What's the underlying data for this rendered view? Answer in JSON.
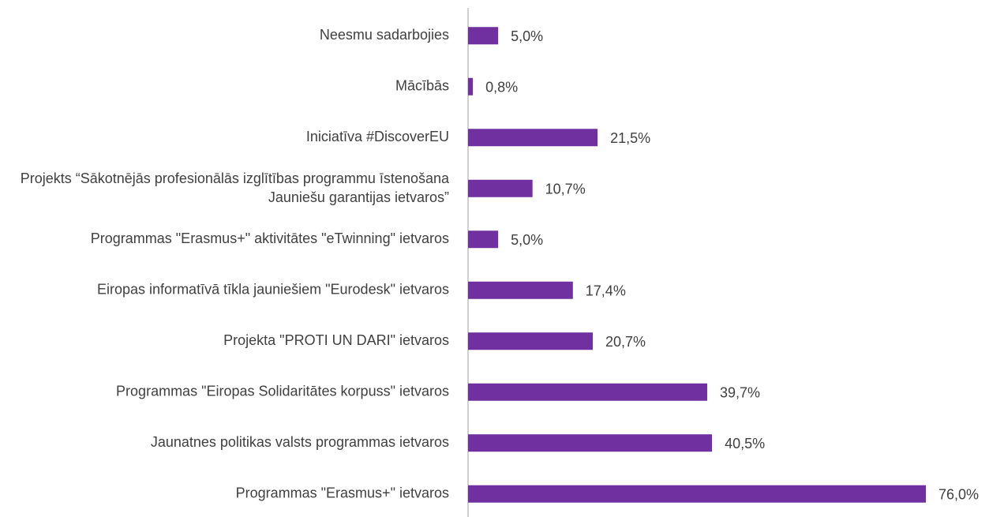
{
  "chart_data": {
    "type": "bar",
    "orientation": "horizontal",
    "categories": [
      "Neesmu sadarbojies",
      "Mācībās",
      "Iniciatīva #DiscoverEU",
      "Projekts “Sākotnējās profesionālās izglītības programmu īstenošana Jauniešu garantijas ietvaros”",
      "Programmas \"Erasmus+\" aktivitātes \"eTwinning\" ietvaros",
      "Eiropas informatīvā tīkla jauniešiem \"Eurodesk\" ietvaros",
      "Projekta \"PROTI UN DARI\" ietvaros",
      "Programmas \"Eiropas Solidaritātes korpuss\" ietvaros",
      "Jaunatnes politikas valsts programmas ietvaros",
      "Programmas \"Erasmus+\" ietvaros"
    ],
    "values": [
      5.0,
      0.8,
      21.5,
      10.7,
      5.0,
      17.4,
      20.7,
      39.7,
      40.5,
      76.0
    ],
    "value_labels": [
      "5,0%",
      "0,8%",
      "21,5%",
      "10,7%",
      "5,0%",
      "17,4%",
      "20,7%",
      "39,7%",
      "40,5%",
      "76,0%"
    ],
    "color": "#7030a0"
  }
}
